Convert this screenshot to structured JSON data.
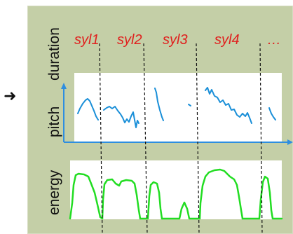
{
  "labels": {
    "duration": "duration",
    "pitch": "pitch",
    "energy": "energy"
  },
  "syllables": [
    "syl1",
    "syl2",
    "syl3",
    "syl4",
    "…"
  ],
  "colors": {
    "panel_background": "#c4cfa7",
    "syllable_text": "#e0201e",
    "pitch_curve": "#1a8fd8",
    "energy_curve": "#22dd22",
    "axis": "#2e8ee0",
    "boundary": "#111111"
  },
  "icons": {
    "arrow": "right-arrow-icon"
  }
}
